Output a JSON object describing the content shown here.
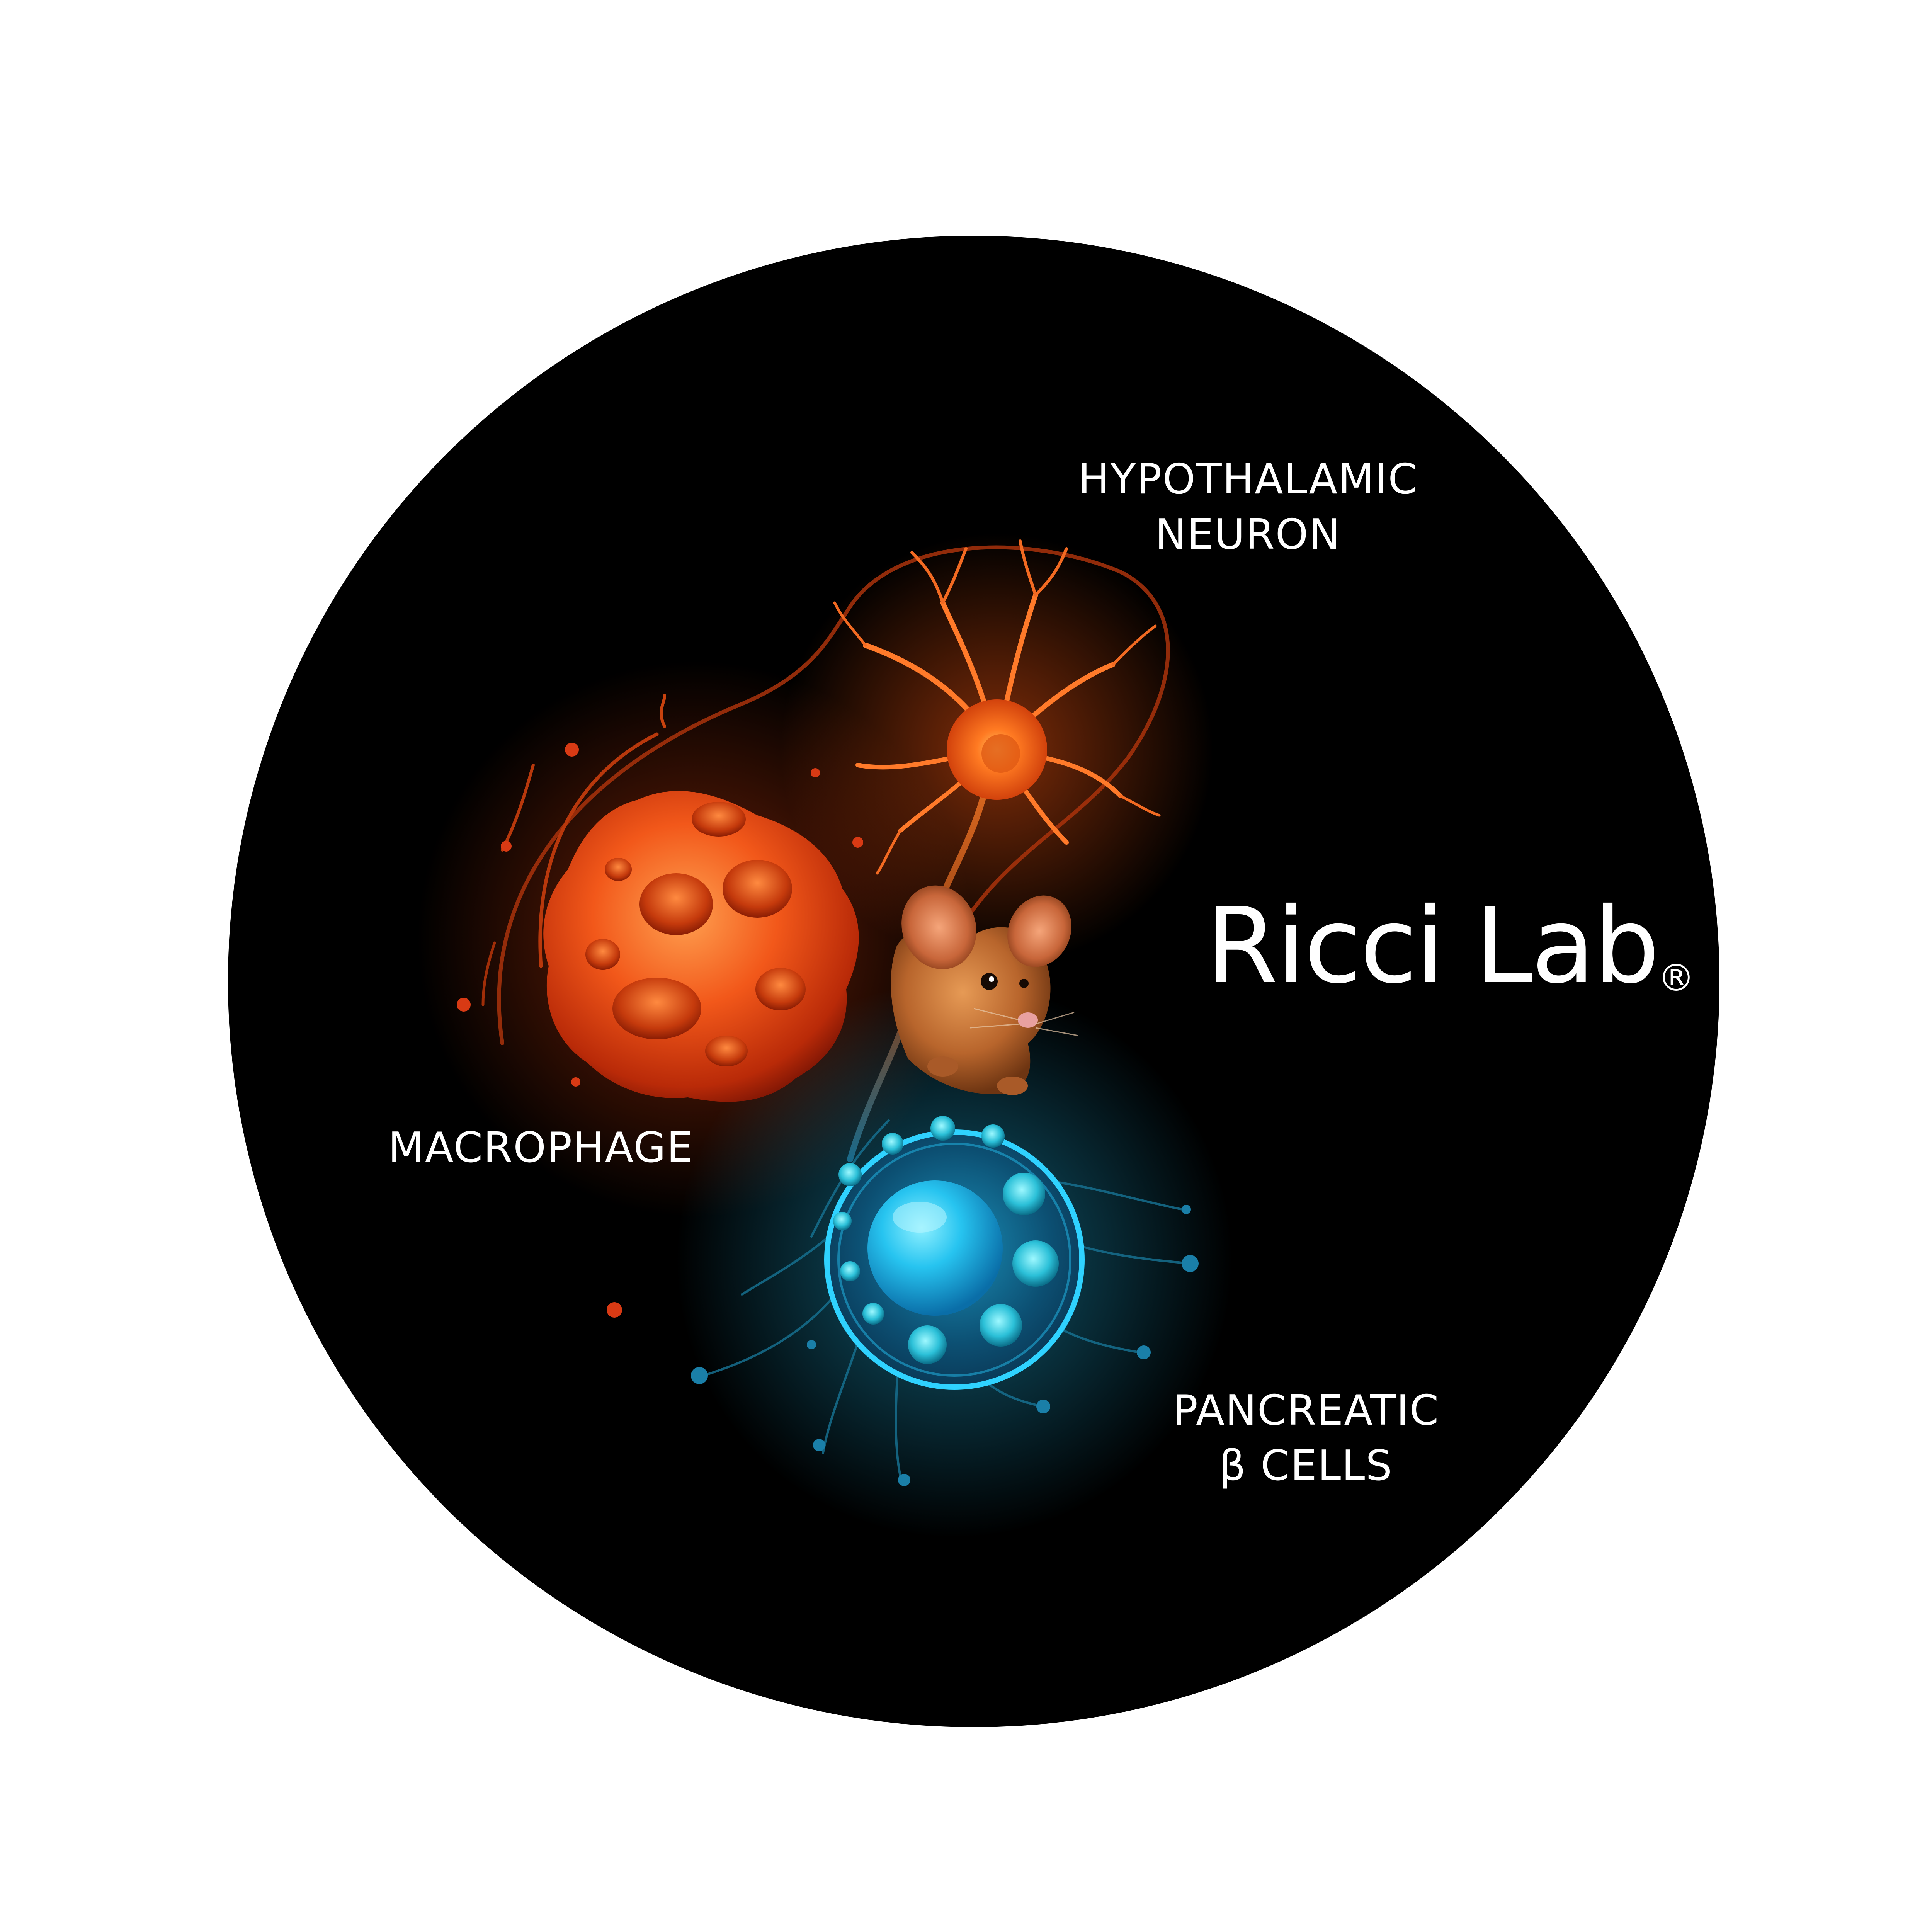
{
  "logo": {
    "name": "Ricci Lab",
    "registered_mark": "®"
  },
  "labels": {
    "neuron": [
      "HYPOTHALAMIC",
      "NEURON"
    ],
    "macrophage": [
      "MACROPHAGE"
    ],
    "beta_cells": [
      "PANCREATIC",
      "β CELLS"
    ]
  },
  "colors": {
    "background": "#000000",
    "outer": "#ffffff",
    "text": "#ffffff",
    "macrophage": "#ff5a14",
    "neuron": "#ff6a1e",
    "beta_cell": "#22c8f0",
    "mouse": "#b8652c"
  },
  "icons": [
    "macrophage-illustration",
    "neuron-illustration",
    "mouse-illustration",
    "beta-cell-illustration"
  ]
}
